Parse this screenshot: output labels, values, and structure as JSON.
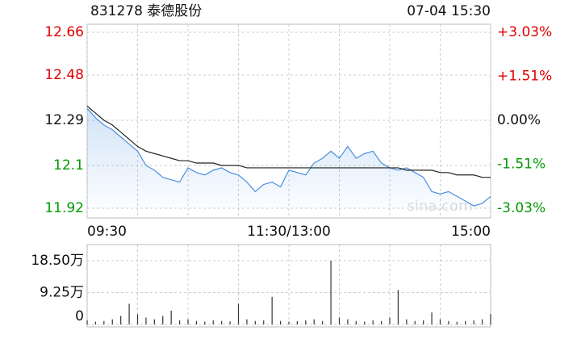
{
  "header": {
    "title": "831278 泰德股份",
    "time": "07-04 15:30"
  },
  "watermark": "sina.com",
  "chart_data": [
    {
      "type": "line",
      "x": [
        0,
        5,
        10,
        15,
        20,
        25,
        30,
        35,
        40,
        45,
        50,
        55,
        60,
        65,
        70,
        75,
        80,
        85,
        90,
        95,
        100,
        105,
        110,
        115,
        120,
        125,
        130,
        135,
        140,
        145,
        150,
        155,
        160,
        165,
        170,
        175,
        180,
        185,
        190,
        195,
        200,
        205,
        210,
        215,
        220,
        225,
        230,
        235,
        240
      ],
      "xlim": [
        0,
        240
      ],
      "xticks": [
        {
          "value": 0,
          "label": "09:30"
        },
        {
          "value": 120,
          "label": "11:30/13:00"
        },
        {
          "value": 240,
          "label": "15:00"
        }
      ],
      "series": [
        {
          "color": "#4a8fe0",
          "values": [
            12.34,
            12.3,
            12.27,
            12.25,
            12.22,
            12.19,
            12.16,
            12.1,
            12.08,
            12.05,
            12.04,
            12.03,
            12.09,
            12.07,
            12.06,
            12.08,
            12.09,
            12.07,
            12.06,
            12.03,
            11.99,
            12.02,
            12.03,
            12.01,
            12.08,
            12.07,
            12.06,
            12.11,
            12.13,
            12.16,
            12.13,
            12.18,
            12.13,
            12.15,
            12.16,
            12.11,
            12.09,
            12.08,
            12.09,
            12.07,
            12.05,
            11.99,
            11.98,
            11.99,
            11.97,
            11.95,
            11.93,
            11.94,
            11.97
          ]
        },
        {
          "color": "#222222",
          "values": [
            12.35,
            12.32,
            12.29,
            12.27,
            12.24,
            12.21,
            12.18,
            12.16,
            12.15,
            12.14,
            12.13,
            12.12,
            12.12,
            12.11,
            12.11,
            12.11,
            12.1,
            12.1,
            12.1,
            12.09,
            12.09,
            12.09,
            12.09,
            12.09,
            12.09,
            12.09,
            12.09,
            12.09,
            12.09,
            12.09,
            12.09,
            12.09,
            12.09,
            12.09,
            12.09,
            12.09,
            12.09,
            12.09,
            12.08,
            12.08,
            12.08,
            12.08,
            12.07,
            12.07,
            12.06,
            12.06,
            12.06,
            12.05,
            12.05
          ]
        }
      ],
      "ylim": [
        11.92,
        12.66
      ],
      "yticks": [
        12.66,
        12.48,
        12.29,
        12.1,
        {
          "value": 11.92,
          "label": "11.92"
        }
      ],
      "y2lim": [
        -3.03,
        3.03
      ],
      "y2ticks": [
        {
          "value": 3.03,
          "label": "+3.03%"
        },
        {
          "value": 1.51,
          "label": "+1.51%"
        },
        {
          "value": 0,
          "label": "0.00%"
        },
        {
          "value": -1.51,
          "label": "-1.51%"
        },
        {
          "value": -3.03,
          "label": "-3.03%"
        }
      ],
      "up_color": "#e00000",
      "down_color": "#009900",
      "grid": true
    },
    {
      "type": "bar",
      "color": "#333333",
      "x": [
        0,
        5,
        10,
        15,
        20,
        25,
        30,
        35,
        40,
        45,
        50,
        55,
        60,
        65,
        70,
        75,
        80,
        85,
        90,
        95,
        100,
        105,
        110,
        115,
        120,
        125,
        130,
        135,
        140,
        145,
        150,
        155,
        160,
        165,
        170,
        175,
        180,
        185,
        190,
        195,
        200,
        205,
        210,
        215,
        220,
        225,
        230,
        235,
        240
      ],
      "xlim": [
        0,
        240
      ],
      "values": [
        1.2,
        0.8,
        1.0,
        1.5,
        2.5,
        6.0,
        3.0,
        2.0,
        1.5,
        2.5,
        4.0,
        1.2,
        1.5,
        1.0,
        0.8,
        1.2,
        1.0,
        0.9,
        6.0,
        1.5,
        1.0,
        1.2,
        8.0,
        1.0,
        0.8,
        1.0,
        1.2,
        1.5,
        1.0,
        18.5,
        2.0,
        1.5,
        1.0,
        0.8,
        1.2,
        1.0,
        2.0,
        10.0,
        1.5,
        1.0,
        1.2,
        3.5,
        1.5,
        1.0,
        0.8,
        1.0,
        1.2,
        1.5,
        3.0
      ],
      "ylim": [
        0,
        22
      ],
      "yticks": [
        {
          "value": 18.5,
          "label": "18.50万"
        },
        {
          "value": 9.25,
          "label": "9.25万"
        },
        0
      ],
      "grid": true
    }
  ]
}
